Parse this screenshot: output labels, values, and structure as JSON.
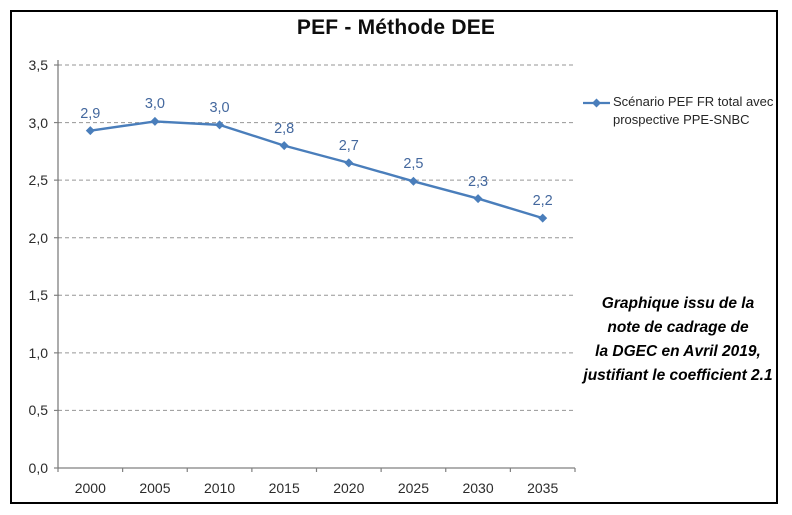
{
  "title": "PEF - Méthode DEE",
  "legend": {
    "series_label": "Scénario PEF FR total avec prospective PPE-SNBC"
  },
  "annotation": {
    "lines": [
      "Graphique issu de la",
      "note de cadrage de",
      "la DGEC en Avril 2019,",
      "justifiant le coefficient 2.1"
    ]
  },
  "chart_data": {
    "type": "line",
    "title": "PEF - Méthode DEE",
    "xlabel": "",
    "ylabel": "",
    "categories": [
      "2000",
      "2005",
      "2010",
      "2015",
      "2020",
      "2025",
      "2030",
      "2035"
    ],
    "series": [
      {
        "name": "Scénario PEF FR total avec prospective PPE-SNBC",
        "values": [
          2.93,
          3.01,
          2.98,
          2.8,
          2.65,
          2.49,
          2.34,
          2.17
        ],
        "labels": [
          "2,9",
          "3,0",
          "3,0",
          "2,8",
          "2,7",
          "2,5",
          "2,3",
          "2,2"
        ]
      }
    ],
    "ylim": [
      0,
      3.5
    ],
    "ytick_step": 0.5,
    "ytick_labels": [
      "0,0",
      "0,5",
      "1,0",
      "1,5",
      "2,0",
      "2,5",
      "3,0",
      "3,5"
    ],
    "grid": "horizontal-dashed",
    "legend_position": "right",
    "marker": "diamond",
    "colors": {
      "line": "#4a7ebb",
      "data_label": "#44689e",
      "grid": "#969696",
      "axis": "#808080",
      "tick_label": "#2b2b2b",
      "border": "#000000"
    }
  }
}
